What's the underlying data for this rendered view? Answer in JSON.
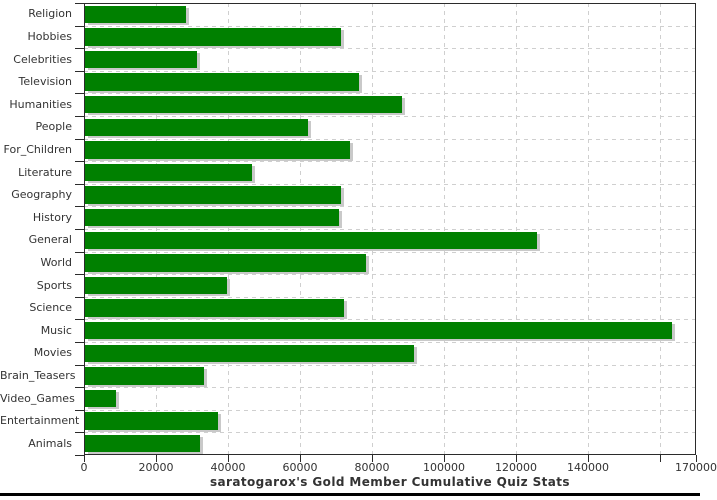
{
  "chart_data": {
    "type": "bar",
    "orientation": "horizontal",
    "title": "saratogarox's Gold Member Cumulative Quiz Stats",
    "categories": [
      "Religion",
      "Hobbies",
      "Celebrities",
      "Television",
      "Humanities",
      "People",
      "For_Children",
      "Literature",
      "Geography",
      "History",
      "General",
      "World",
      "Sports",
      "Science",
      "Music",
      "Movies",
      "Brain_Teasers",
      "Video_Games",
      "Entertainment",
      "Animals"
    ],
    "values": [
      28000,
      71000,
      31000,
      76000,
      88000,
      62000,
      73500,
      46500,
      71000,
      70500,
      125500,
      78000,
      39500,
      72000,
      163000,
      91500,
      33000,
      8500,
      37000,
      32000
    ],
    "xlabel": "",
    "ylabel": "",
    "xlim": [
      0,
      170000
    ],
    "x_ticks": [
      {
        "value": 0,
        "label": "0"
      },
      {
        "value": 20000,
        "label": "20000"
      },
      {
        "value": 40000,
        "label": "40000"
      },
      {
        "value": 60000,
        "label": "60000"
      },
      {
        "value": 80000,
        "label": "80000"
      },
      {
        "value": 100000,
        "label": "100000"
      },
      {
        "value": 120000,
        "label": "120000"
      },
      {
        "value": 140000,
        "label": "140000"
      },
      {
        "value": 160000,
        "label": ""
      },
      {
        "value": 170000,
        "label": "170000"
      }
    ],
    "grid": {
      "vertical": true,
      "horizontal": true,
      "style": "dashed"
    },
    "legend": "none",
    "colors": {
      "bar": "#008000",
      "bar_shadow": "#c9c9c9",
      "grid": "#cfcfcf",
      "axis": "#2b2b2b",
      "text": "#333333",
      "background": "#ffffff",
      "bottom_rule": "#000000"
    }
  }
}
